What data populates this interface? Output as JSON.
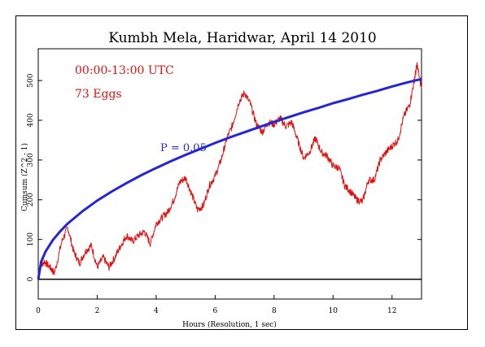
{
  "colors": {
    "cumsum_line": "#e01010",
    "p05_envelope": "#2424d8",
    "zero_line": "#000000",
    "annotation_text": "#e01010",
    "probability_label": "#2424d8"
  },
  "chart_data": {
    "type": "line",
    "title": "Kumbh Mela, Haridwar, April 14 2010",
    "xlabel": "Hours (Resolution, 1 sec)",
    "ylabel": "Cumsum (Z^2 - 1)",
    "xlim": [
      0,
      13
    ],
    "ylim": [
      -50,
      580
    ],
    "x_ticks": [
      0,
      2,
      4,
      6,
      8,
      10,
      12
    ],
    "y_ticks": [
      0,
      100,
      200,
      300,
      400,
      500
    ],
    "grid": false,
    "annotations": {
      "time_range": "00:00-13:00 UTC",
      "eggs": "73 Eggs",
      "probability": "P = 0.05"
    },
    "series": [
      {
        "style": "noisy-walk",
        "x": [
          0,
          0.2,
          0.4,
          0.55,
          0.8,
          1.0,
          1.2,
          1.4,
          1.6,
          1.8,
          2.0,
          2.2,
          2.4,
          2.6,
          2.8,
          3.0,
          3.2,
          3.4,
          3.6,
          3.8,
          4.0,
          4.2,
          4.4,
          4.6,
          4.8,
          5.0,
          5.2,
          5.4,
          5.6,
          5.8,
          6.0,
          6.2,
          6.4,
          6.6,
          6.8,
          7.0,
          7.2,
          7.4,
          7.6,
          7.8,
          8.0,
          8.2,
          8.4,
          8.6,
          8.8,
          9.0,
          9.2,
          9.4,
          9.6,
          9.8,
          10.0,
          10.2,
          10.4,
          10.6,
          10.8,
          11.0,
          11.2,
          11.4,
          11.6,
          11.8,
          12.0,
          12.2,
          12.4,
          12.6,
          12.75,
          12.85,
          13.0
        ],
        "y": [
          20,
          45,
          30,
          15,
          95,
          130,
          70,
          40,
          70,
          85,
          30,
          55,
          30,
          55,
          85,
          110,
          95,
          110,
          120,
          90,
          140,
          155,
          170,
          200,
          245,
          255,
          215,
          175,
          185,
          235,
          260,
          300,
          355,
          390,
          445,
          470,
          440,
          390,
          370,
          395,
          390,
          405,
          385,
          395,
          350,
          305,
          320,
          355,
          320,
          310,
          285,
          280,
          235,
          220,
          200,
          195,
          250,
          250,
          300,
          320,
          335,
          350,
          410,
          440,
          500,
          540,
          480
        ]
      },
      {
        "style": "smooth-envelope",
        "x": [
          0,
          0.1,
          0.25,
          0.5,
          0.75,
          1.0,
          1.5,
          2.0,
          2.5,
          3.0,
          3.5,
          4.0,
          4.5,
          5.0,
          5.5,
          6.0,
          6.5,
          7.0,
          7.5,
          8.0,
          8.5,
          9.0,
          9.5,
          10.0,
          10.5,
          11.0,
          11.5,
          12.0,
          12.5,
          13.0
        ],
        "y": [
          0,
          44,
          70,
          99,
          121,
          140,
          171,
          198,
          221,
          242,
          262,
          280,
          297,
          313,
          328,
          343,
          357,
          370,
          383,
          396,
          408,
          420,
          431,
          443,
          453,
          464,
          474,
          485,
          495,
          504
        ]
      },
      {
        "style": "zero-line",
        "x": [
          0,
          13
        ],
        "y": [
          0,
          0
        ]
      }
    ]
  }
}
